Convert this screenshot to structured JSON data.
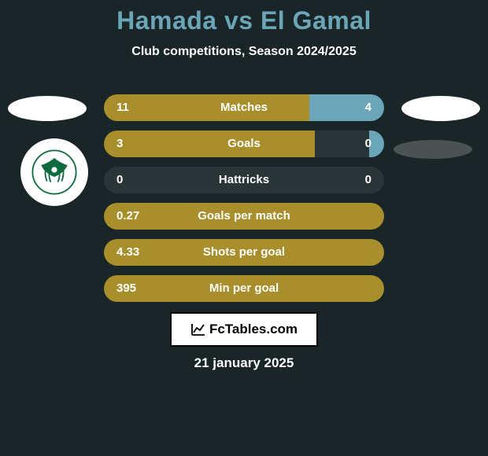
{
  "title": "Hamada vs El Gamal",
  "subtitle": "Club competitions, Season 2024/2025",
  "footer_brand": "FcTables.com",
  "footer_date": "21 january 2025",
  "colors": {
    "player1_bar": "#a88f2b",
    "player2_bar": "#6aa5b8",
    "bar_bg": "#2a3538",
    "title": "#6aa5b8",
    "text": "#ffffff",
    "logo_green": "#0d6b3e"
  },
  "bar_total_units": 15,
  "stats": [
    {
      "label": "Matches",
      "left_val": "11",
      "right_val": "4",
      "left_units": 11,
      "right_units": 4
    },
    {
      "label": "Goals",
      "left_val": "3",
      "right_val": "0",
      "left_units": 11.3,
      "right_units": 0.8
    },
    {
      "label": "Hattricks",
      "left_val": "0",
      "right_val": "0",
      "left_units": 0,
      "right_units": 0
    },
    {
      "label": "Goals per match",
      "left_val": "0.27",
      "right_val": "",
      "left_units": 15,
      "right_units": 0
    },
    {
      "label": "Shots per goal",
      "left_val": "4.33",
      "right_val": "",
      "left_units": 15,
      "right_units": 0
    },
    {
      "label": "Min per goal",
      "left_val": "395",
      "right_val": "",
      "left_units": 15,
      "right_units": 0
    }
  ]
}
